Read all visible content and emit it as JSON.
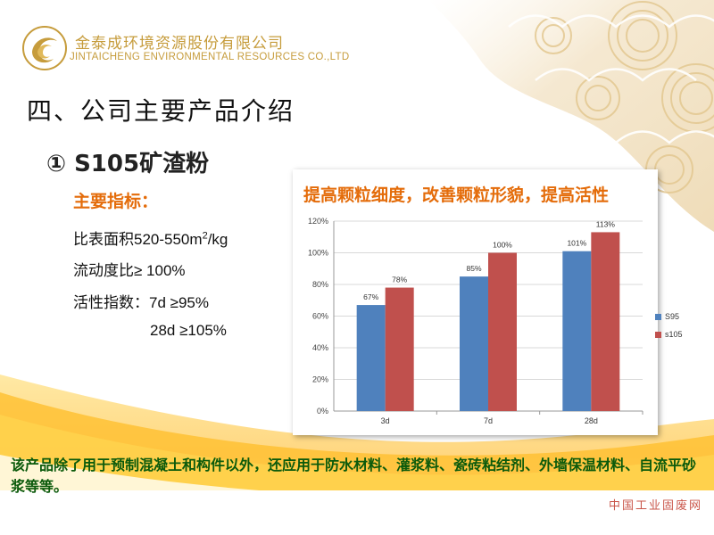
{
  "header": {
    "company_cn": "金泰成环境资源股份有限公司",
    "company_en": "JINTAICHENG ENVIRONMENTAL RESOURCES CO.,LTD"
  },
  "section_title": "四、公司主要产品介绍",
  "product_title": "① S105矿渣粉",
  "indicators": {
    "heading": "主要指标：",
    "specific_surface_prefix": "比表面积520-550m",
    "specific_surface_sup": "2",
    "specific_surface_suffix": "/kg",
    "fluidity": "流动度比≥ 100%",
    "activity_7d": "活性指数：7d ≥95%",
    "activity_28d": "28d ≥105%"
  },
  "chart_title": "提高颗粒细度，改善颗粒形貌，提高活性",
  "chart_data": {
    "type": "bar",
    "categories": [
      "3d",
      "7d",
      "28d"
    ],
    "series": [
      {
        "name": "S95",
        "values": [
          67,
          85,
          101
        ],
        "labels": [
          "67%",
          "85%",
          "101%"
        ],
        "color": "#4f81bd"
      },
      {
        "name": "s105",
        "values": [
          78,
          100,
          113
        ],
        "labels": [
          "78%",
          "100%",
          "113%"
        ],
        "color": "#c0504d"
      }
    ],
    "ylim": [
      0,
      120
    ],
    "yticks": [
      "0%",
      "20%",
      "40%",
      "60%",
      "80%",
      "100%",
      "120%"
    ],
    "grid": true,
    "legend": "right"
  },
  "bottom_text": "该产品除了用于预制混凝土和构件以外，还应用于防水材料、灌浆料、瓷砖粘结剂、外墙保温材料、自流平砂浆等等。",
  "watermark": "中国工业固废网",
  "colors": {
    "accent_orange": "#e46c0a",
    "gold": "#c69c3c",
    "green_text": "#0b5a0b"
  }
}
